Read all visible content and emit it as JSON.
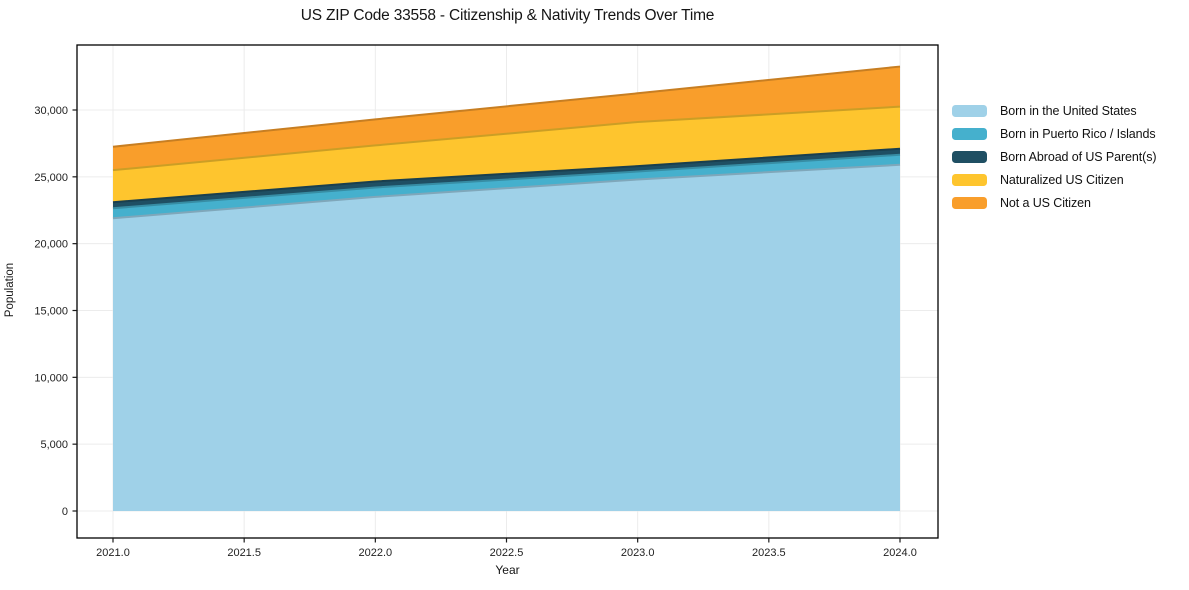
{
  "chart_data": {
    "type": "area",
    "stacked": true,
    "title": "US ZIP Code 33558 - Citizenship & Nativity Trends Over Time",
    "xlabel": "Year",
    "ylabel": "Population",
    "x": [
      2021,
      2022,
      2023,
      2024
    ],
    "series": [
      {
        "name": "Born in the United States",
        "color": "#9fd1e8",
        "values": [
          21900,
          23500,
          24800,
          25900
        ]
      },
      {
        "name": "Born in Puerto Rico / Islands",
        "color": "#45b0cd",
        "values": [
          750,
          700,
          600,
          750
        ]
      },
      {
        "name": "Born Abroad of US Parent(s)",
        "color": "#1f4f63",
        "values": [
          450,
          450,
          400,
          450
        ]
      },
      {
        "name": "Naturalized US Citizen",
        "color": "#fec52e",
        "values": [
          2400,
          2700,
          3300,
          3150
        ]
      },
      {
        "name": "Not a US Citizen",
        "color": "#f99e2b",
        "values": [
          1750,
          1950,
          2150,
          3000
        ]
      }
    ],
    "stacked_totals": [
      27250,
      29300,
      31250,
      33250
    ],
    "x_ticks": {
      "values": [
        2021.0,
        2021.5,
        2022.0,
        2022.5,
        2023.0,
        2023.5,
        2024.0
      ],
      "labels": [
        "2021.0",
        "2021.5",
        "2022.0",
        "2022.5",
        "2023.0",
        "2023.5",
        "2024.0"
      ]
    },
    "y_ticks": {
      "values": [
        0,
        5000,
        10000,
        15000,
        20000,
        25000,
        30000
      ],
      "labels": [
        "0",
        "5,000",
        "10,000",
        "15,000",
        "20,000",
        "25,000",
        "30,000"
      ]
    },
    "xlim": [
      2020.86,
      2024.15
    ],
    "ylim": [
      -2000,
      34900
    ],
    "grid": true,
    "legend_position": "right",
    "colors": {
      "grid": "#ececec",
      "spine": "#000000",
      "tick": "#1a1a1a",
      "tick_label": "#1f1f1f"
    }
  }
}
